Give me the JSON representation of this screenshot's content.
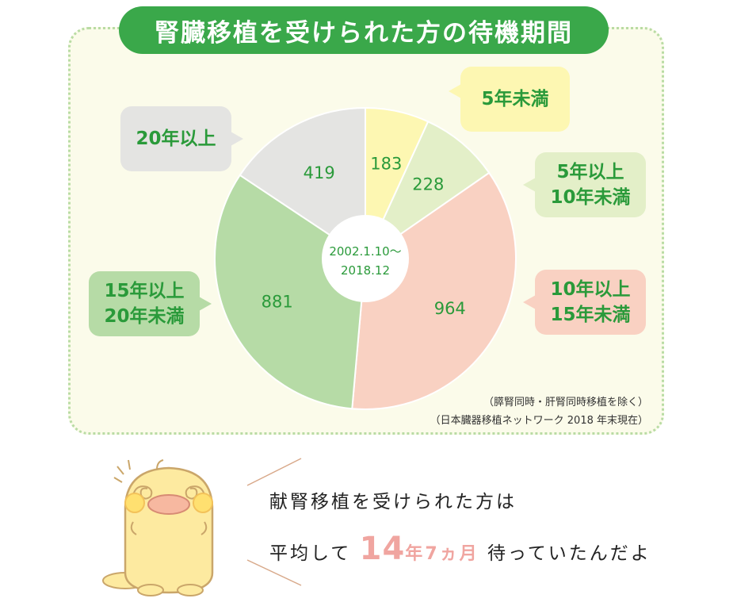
{
  "title": "腎臓移植を受けられた方の待機期間",
  "chart_data": {
    "type": "pie",
    "center_label_1": "2002.1.10～",
    "center_label_2": "2018.12",
    "slices": [
      {
        "label_1": "5年未満",
        "label_2": "",
        "value": 183,
        "color": "#fdf7b2"
      },
      {
        "label_1": "5年以上",
        "label_2": "10年未満",
        "value": 228,
        "color": "#e3efc8"
      },
      {
        "label_1": "10年以上",
        "label_2": "15年未満",
        "value": 964,
        "color": "#f9d1c2"
      },
      {
        "label_1": "15年以上",
        "label_2": "20年未満",
        "value": 881,
        "color": "#b6dba6"
      },
      {
        "label_1": "20年以上",
        "label_2": "",
        "value": 419,
        "color": "#e4e4e2"
      }
    ],
    "value_color": "#2a9a3a"
  },
  "notes": {
    "note_1": "（膵腎同時・肝腎同時移植を除く）",
    "note_2": "（日本臓器移植ネットワーク 2018 年末現在）"
  },
  "summary": {
    "line1": "献腎移植を受けられた方は",
    "line2_pre": "平均して",
    "years_num": "14",
    "years_unit": "年",
    "months": "7ヵ月",
    "line2_post": "待っていたんだよ"
  },
  "colors": {
    "title_bg": "#3aa84a",
    "label_green": "#2a9a3a",
    "highlight": "#f0a5a0",
    "mascot_body": "#fdeaa0"
  }
}
